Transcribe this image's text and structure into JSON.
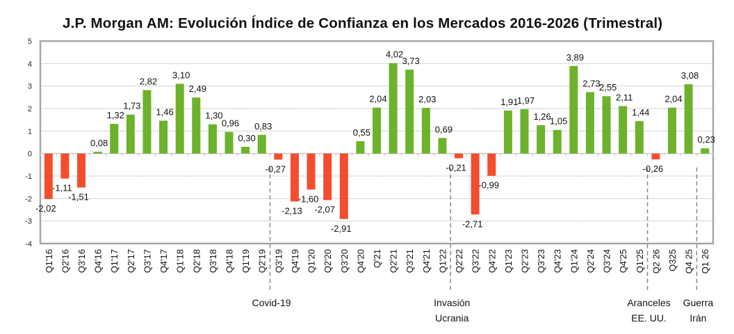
{
  "chart_data": {
    "type": "bar",
    "title": "J.P. Morgan AM: Evolución Índice de Confianza en los Mercados 2016-2026 (Trimestral)",
    "xlabel": "",
    "ylabel": "",
    "ylim": [
      -4,
      5
    ],
    "yticks": [
      "5",
      "4",
      "3",
      "2",
      "1",
      "0",
      "-1",
      "-2",
      "-3",
      "-4"
    ],
    "grid": true,
    "legend": "none",
    "colors": {
      "positive": "#6db22b",
      "negative": "#f24e2e",
      "gridline": "#bfbfbf",
      "frame": "#a6a6a6",
      "annotation_line": "#888888"
    },
    "categories": [
      "Q1'16",
      "Q2'16",
      "Q3'16",
      "Q4'16",
      "Q1'17",
      "Q2'17",
      "Q3'17",
      "Q4'17",
      "Q1'18",
      "Q2'18",
      "Q3'18",
      "Q4'18",
      "Q1'19",
      "Q2'19",
      "Q3'19",
      "Q4'19",
      "Q1'20",
      "Q2'20",
      "Q3'20",
      "Q4'20",
      "Q'21",
      "Q2'21",
      "Q3'21",
      "Q4'21",
      "Q1'22",
      "Q2'22",
      "Q3'22",
      "Q4'22",
      "Q1'23",
      "Q2'23",
      "Q3'23",
      "Q4'23",
      "Q1'24",
      "Q2'24",
      "Q3'24",
      "Q4'25",
      "Q1'25",
      "Q2 26",
      "Q325",
      "Q4 25",
      "Q1 26"
    ],
    "values": [
      -2.02,
      -1.11,
      -1.51,
      0.08,
      1.32,
      1.73,
      2.82,
      1.46,
      3.1,
      2.49,
      1.3,
      0.96,
      0.3,
      0.83,
      -0.27,
      -2.13,
      -1.6,
      -2.07,
      -2.91,
      0.55,
      2.04,
      4.02,
      3.73,
      2.03,
      0.69,
      -0.21,
      -2.71,
      -0.99,
      1.91,
      1.97,
      1.26,
      1.05,
      3.89,
      2.73,
      2.55,
      2.11,
      1.44,
      -0.26,
      2.04,
      3.08,
      0.23
    ],
    "data_labels": [
      "-2,02",
      "-1,11",
      "-1,51",
      "0,08",
      "1,32",
      "1,73",
      "2,82",
      "1,46",
      "3,10",
      "2,49",
      "1,30",
      "0,96",
      "0,30",
      "0,83",
      "-0,27",
      "-2,13",
      "-1,60",
      "-2,07",
      "-2,91",
      "0,55",
      "2,04",
      "4,02",
      "3,73",
      "2,03",
      "0,69",
      "-0,21",
      "-2,71",
      "-0,99",
      "1,91",
      "1,97",
      "1,26",
      "1,05",
      "3,89",
      "2,73",
      "2,55",
      "2,11",
      "1,44",
      "-0,26",
      "2,04",
      "3,08",
      "0,23"
    ],
    "annotations": [
      {
        "after_category_index": 13,
        "lines": [
          "Covid-19"
        ]
      },
      {
        "after_category_index": 24,
        "lines": [
          "Invasión",
          "Ucrania"
        ]
      },
      {
        "after_category_index": 36,
        "lines": [
          "Aranceles",
          "EE. UU."
        ]
      },
      {
        "after_category_index": 39,
        "lines": [
          "Guerra",
          "Irán"
        ]
      }
    ]
  }
}
